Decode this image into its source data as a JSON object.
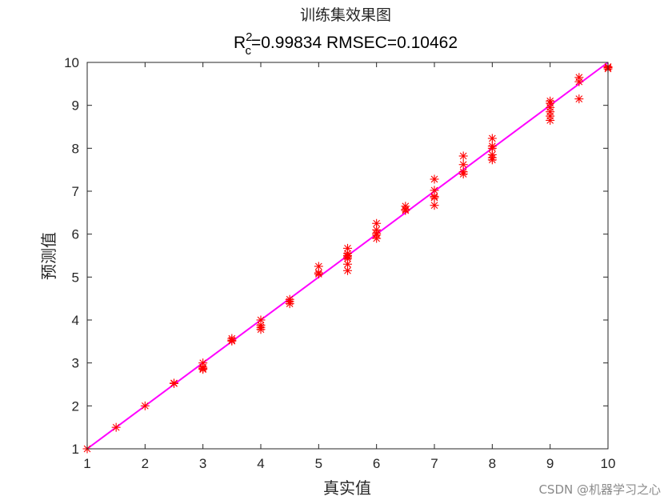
{
  "chart_data": {
    "type": "scatter",
    "title": "训练集效果图",
    "subtitle": {
      "r_label": "R",
      "r_sup": "2",
      "r_sub": "c",
      "rest": "=0.99834  RMSEC=0.10462"
    },
    "xlabel": "真实值",
    "ylabel": "预测值",
    "xlim": [
      1,
      10
    ],
    "ylim": [
      1,
      10
    ],
    "xticks": [
      "1",
      "2",
      "3",
      "4",
      "5",
      "6",
      "7",
      "8",
      "9",
      "10"
    ],
    "yticks": [
      "1",
      "2",
      "3",
      "4",
      "5",
      "6",
      "7",
      "8",
      "9",
      "10"
    ],
    "grid": false,
    "legend": "none",
    "series": [
      {
        "marker": "asterisk",
        "color": "#ff0000",
        "points": [
          [
            1,
            1.0
          ],
          [
            1.5,
            1.5
          ],
          [
            2,
            2.0
          ],
          [
            2.5,
            2.52
          ],
          [
            2.5,
            2.53
          ],
          [
            3,
            3.0
          ],
          [
            3,
            2.9
          ],
          [
            3,
            2.87
          ],
          [
            3,
            2.85
          ],
          [
            3.5,
            3.57
          ],
          [
            3.5,
            3.53
          ],
          [
            3.5,
            3.51
          ],
          [
            4,
            4.0
          ],
          [
            4,
            3.88
          ],
          [
            4,
            3.83
          ],
          [
            4,
            3.78
          ],
          [
            4.5,
            4.48
          ],
          [
            4.5,
            4.43
          ],
          [
            4.5,
            4.38
          ],
          [
            5,
            5.25
          ],
          [
            5,
            5.1
          ],
          [
            5,
            5.07
          ],
          [
            5.5,
            5.67
          ],
          [
            5.5,
            5.55
          ],
          [
            5.5,
            5.5
          ],
          [
            5.5,
            5.47
          ],
          [
            5.5,
            5.43
          ],
          [
            5.5,
            5.3
          ],
          [
            5.5,
            5.15
          ],
          [
            6,
            6.25
          ],
          [
            6,
            6.1
          ],
          [
            6,
            6.02
          ],
          [
            6,
            5.98
          ],
          [
            6,
            5.9
          ],
          [
            6.5,
            6.65
          ],
          [
            6.5,
            6.58
          ],
          [
            6.5,
            6.55
          ],
          [
            7,
            7.28
          ],
          [
            7,
            7.02
          ],
          [
            7,
            6.88
          ],
          [
            7,
            6.85
          ],
          [
            7,
            6.67
          ],
          [
            7.5,
            7.82
          ],
          [
            7.5,
            7.62
          ],
          [
            7.5,
            7.45
          ],
          [
            7.5,
            7.4
          ],
          [
            8,
            8.23
          ],
          [
            8,
            8.05
          ],
          [
            8,
            8.0
          ],
          [
            8,
            7.85
          ],
          [
            8,
            7.78
          ],
          [
            8,
            7.73
          ],
          [
            9,
            9.1
          ],
          [
            9,
            9.05
          ],
          [
            9,
            8.95
          ],
          [
            9,
            8.85
          ],
          [
            9,
            8.75
          ],
          [
            9,
            8.65
          ],
          [
            9.5,
            9.65
          ],
          [
            9.5,
            9.55
          ],
          [
            9.5,
            9.15
          ],
          [
            10,
            9.9
          ],
          [
            10,
            9.88
          ],
          [
            10,
            9.85
          ]
        ]
      },
      {
        "type": "line",
        "color": "#ff00ff",
        "x": [
          1,
          10
        ],
        "y": [
          1,
          10
        ]
      }
    ]
  },
  "watermark": "CSDN @机器学习之心"
}
